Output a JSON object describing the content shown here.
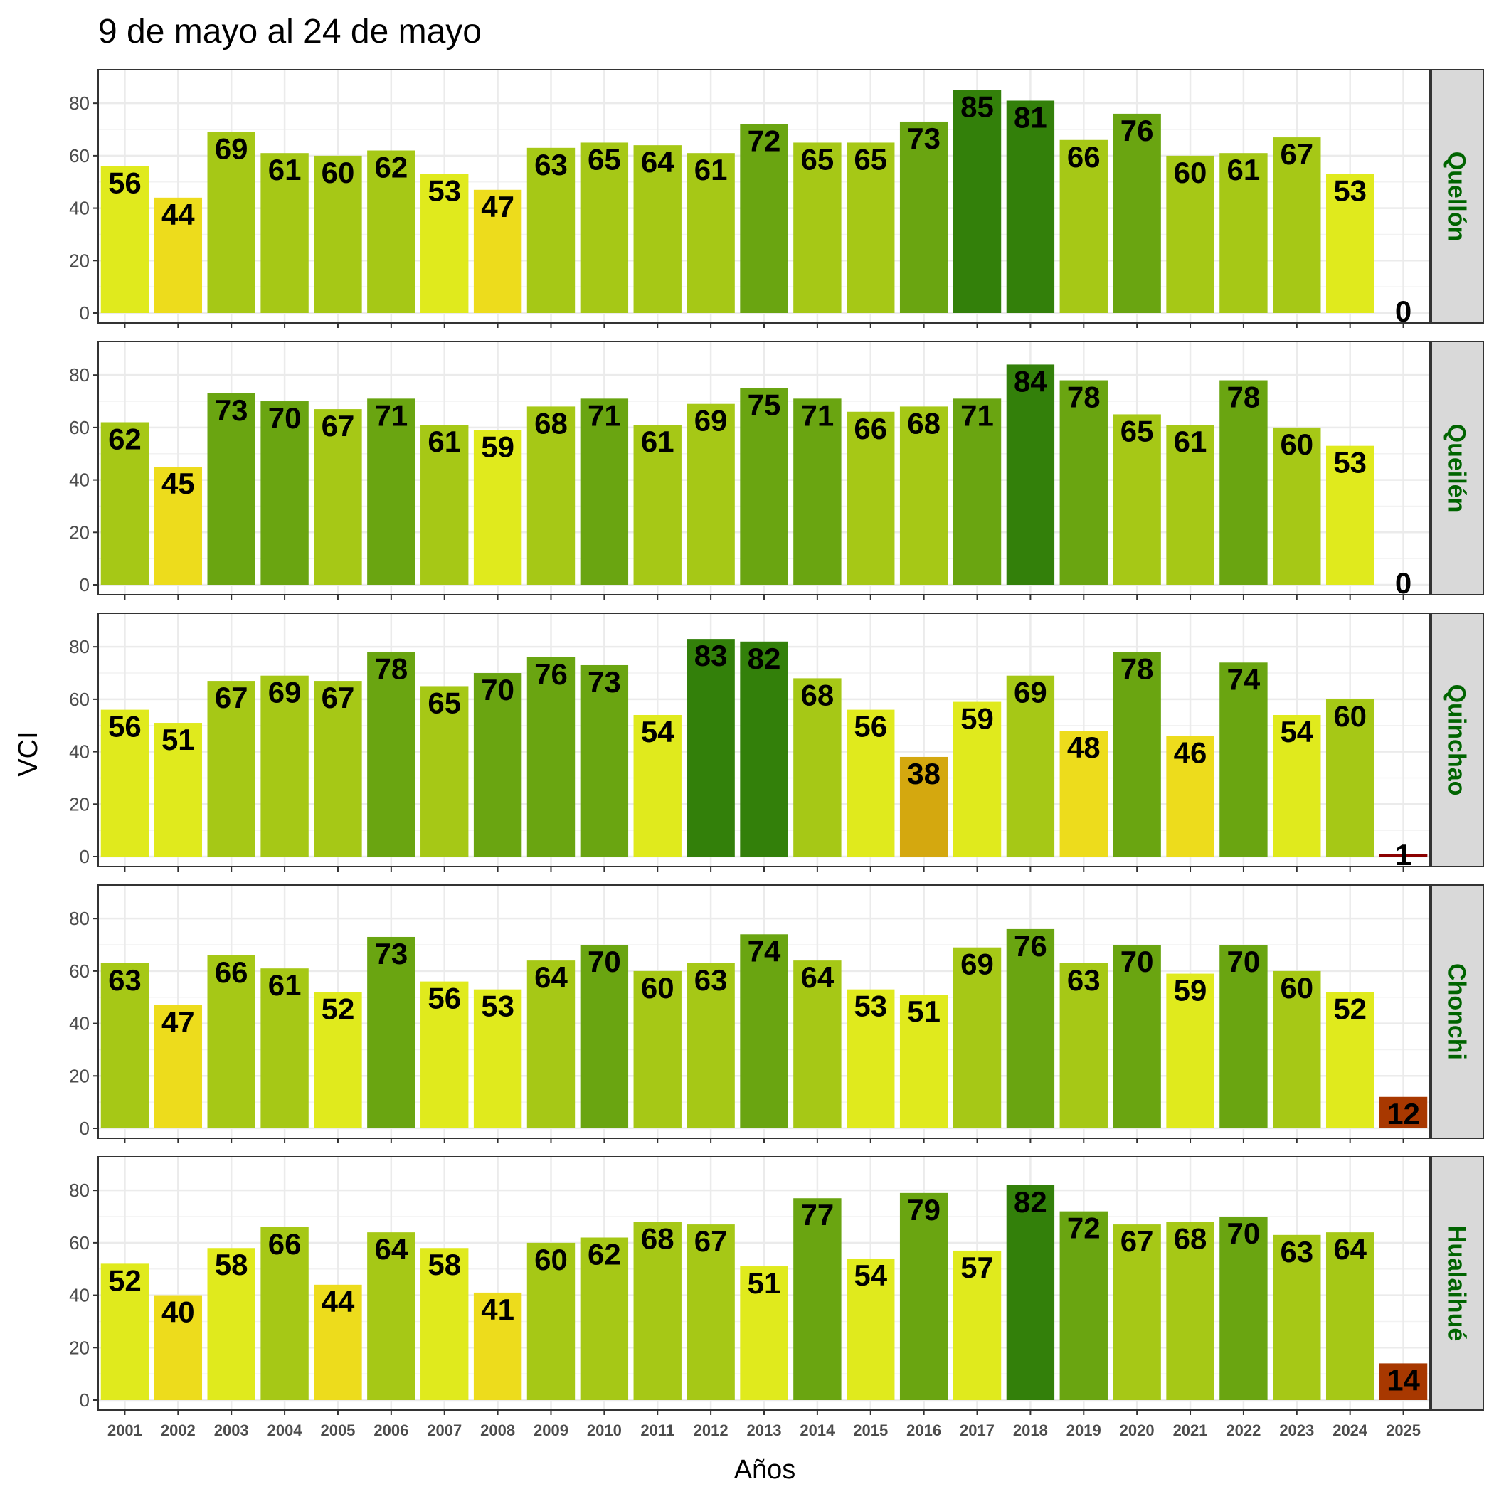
{
  "chart_data": {
    "type": "bar",
    "title": "9 de mayo al 24 de mayo",
    "xlabel": "Años",
    "ylabel": "VCI",
    "ylim": [
      0,
      89
    ],
    "yticks": [
      0,
      20,
      40,
      60,
      80
    ],
    "grid": true,
    "categories": [
      "2001",
      "2002",
      "2003",
      "2004",
      "2005",
      "2006",
      "2007",
      "2008",
      "2009",
      "2010",
      "2011",
      "2012",
      "2013",
      "2014",
      "2015",
      "2016",
      "2017",
      "2018",
      "2019",
      "2020",
      "2021",
      "2022",
      "2023",
      "2024",
      "2025"
    ],
    "color_scale": [
      {
        "min": 0,
        "max": 10,
        "color": "#8b0000"
      },
      {
        "min": 10,
        "max": 20,
        "color": "#a83800"
      },
      {
        "min": 20,
        "max": 30,
        "color": "#c0541b"
      },
      {
        "min": 30,
        "max": 40,
        "color": "#d4a80f"
      },
      {
        "min": 40,
        "max": 50,
        "color": "#eddc1c"
      },
      {
        "min": 50,
        "max": 60,
        "color": "#e0ea1d"
      },
      {
        "min": 60,
        "max": 70,
        "color": "#a6c816"
      },
      {
        "min": 70,
        "max": 80,
        "color": "#6aa511"
      },
      {
        "min": 80,
        "max": 101,
        "color": "#33800a"
      }
    ],
    "panels": [
      {
        "name": "Quellón",
        "values": [
          56,
          44,
          69,
          61,
          60,
          62,
          53,
          47,
          63,
          65,
          64,
          61,
          72,
          65,
          65,
          73,
          85,
          81,
          66,
          76,
          60,
          61,
          67,
          53,
          0
        ]
      },
      {
        "name": "Queilén",
        "values": [
          62,
          45,
          73,
          70,
          67,
          71,
          61,
          59,
          68,
          71,
          61,
          69,
          75,
          71,
          66,
          68,
          71,
          84,
          78,
          65,
          61,
          78,
          60,
          53,
          0
        ]
      },
      {
        "name": "Quinchao",
        "values": [
          56,
          51,
          67,
          69,
          67,
          78,
          65,
          70,
          76,
          73,
          54,
          83,
          82,
          68,
          56,
          38,
          59,
          69,
          48,
          78,
          46,
          74,
          54,
          60,
          1
        ]
      },
      {
        "name": "Chonchi",
        "values": [
          63,
          47,
          66,
          61,
          52,
          73,
          56,
          53,
          64,
          70,
          60,
          63,
          74,
          64,
          53,
          51,
          69,
          76,
          63,
          70,
          59,
          70,
          60,
          52,
          12
        ]
      },
      {
        "name": "Hualaihué",
        "values": [
          52,
          40,
          58,
          66,
          44,
          64,
          58,
          41,
          60,
          62,
          68,
          67,
          51,
          77,
          54,
          79,
          57,
          82,
          72,
          67,
          68,
          70,
          63,
          64,
          14
        ]
      }
    ]
  }
}
